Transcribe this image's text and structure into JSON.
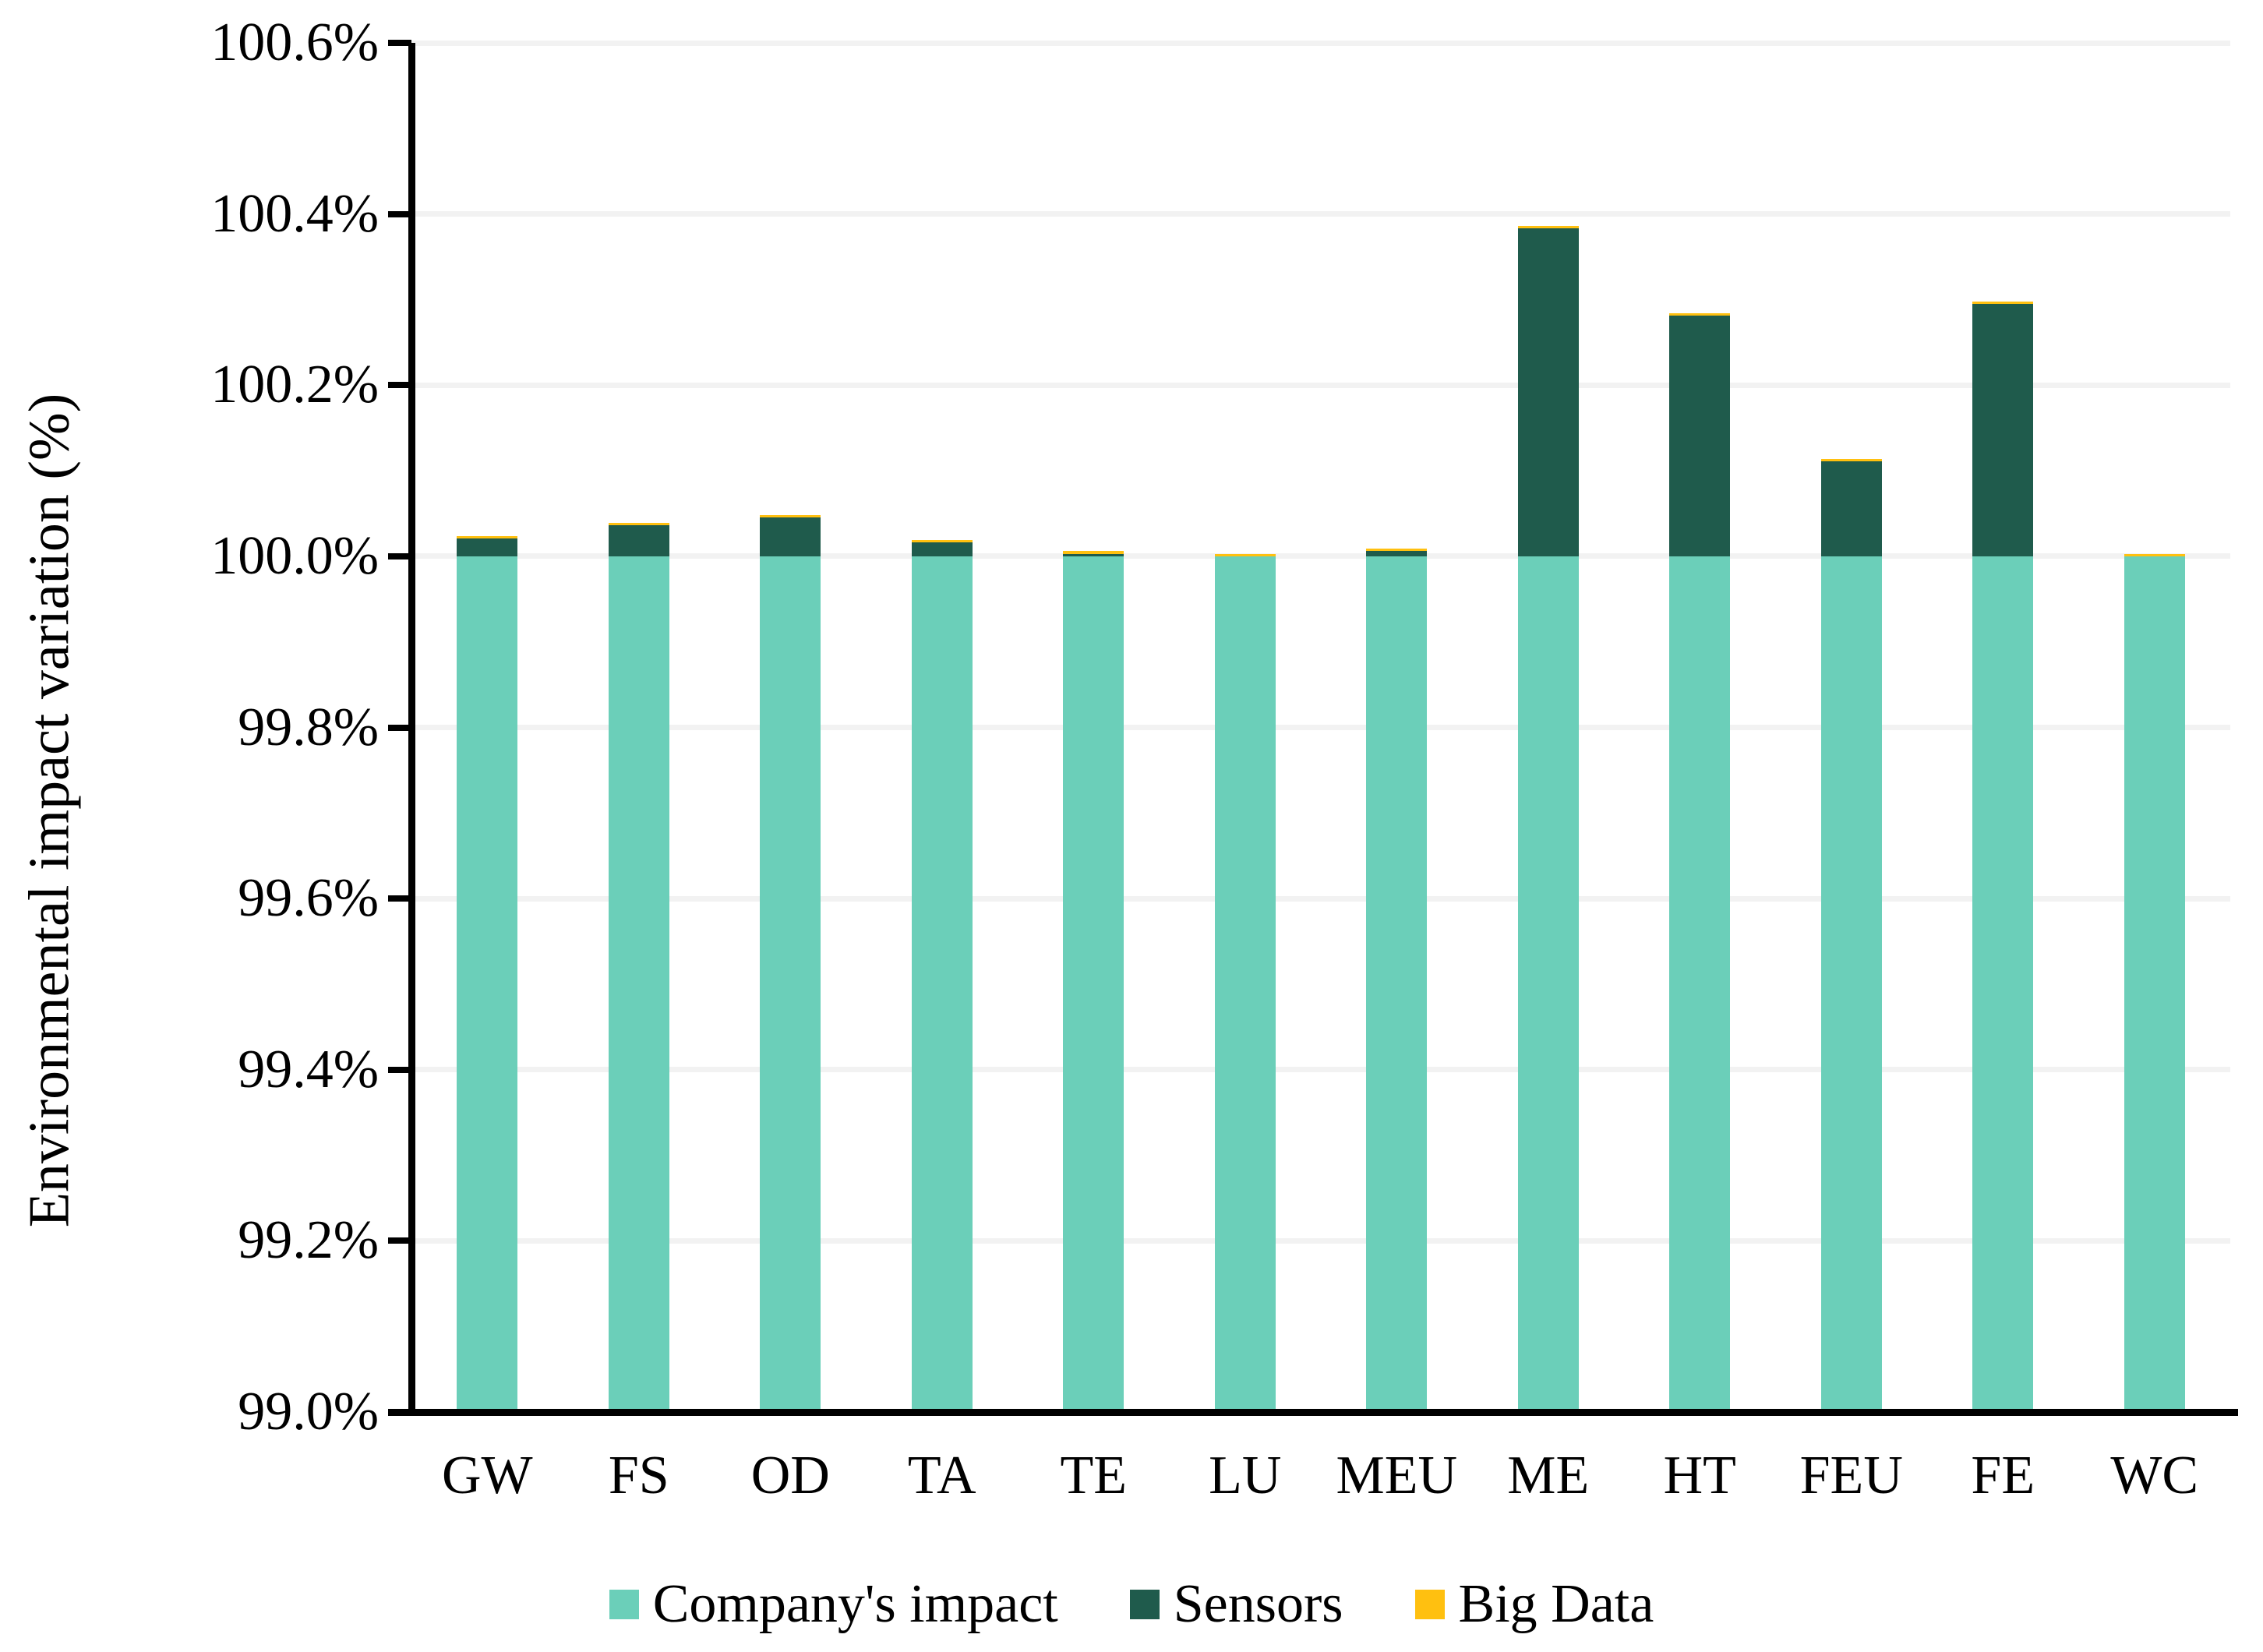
{
  "chart_data": {
    "type": "bar",
    "stacked": true,
    "title": "",
    "xlabel": "",
    "ylabel": "Environmental impact variation (%)",
    "categories": [
      "GW",
      "FS",
      "OD",
      "TA",
      "TE",
      "LU",
      "MEU",
      "ME",
      "HT",
      "FEU",
      "FE",
      "WC"
    ],
    "series": [
      {
        "name": "Company's impact",
        "color": "#6BCFB9",
        "note": "baseline stack segment, value is absolute percent reached from axis minimum",
        "values": [
          100.0,
          100.0,
          100.0,
          100.0,
          100.0,
          100.0,
          100.0,
          100.0,
          100.0,
          100.0,
          100.0,
          100.0
        ]
      },
      {
        "name": "Sensors",
        "color": "#1F5B4C",
        "note": "increment stacked above Company's impact, percent points",
        "values": [
          0.021,
          0.036,
          0.045,
          0.016,
          0.003,
          0.0,
          0.006,
          0.383,
          0.281,
          0.111,
          0.295,
          0.0
        ]
      },
      {
        "name": "Big Data",
        "color": "#FFC010",
        "note": "thin cap increment, percent points",
        "values": [
          0.003,
          0.003,
          0.003,
          0.003,
          0.003,
          0.003,
          0.003,
          0.003,
          0.003,
          0.003,
          0.003,
          0.003
        ]
      }
    ],
    "stack_totals": [
      100.024,
      100.039,
      100.048,
      100.019,
      100.006,
      100.003,
      100.009,
      100.386,
      100.284,
      100.114,
      100.298,
      100.003
    ],
    "ylim": [
      99.0,
      100.6
    ],
    "yticks": [
      {
        "v": 99.0,
        "label": "99.0%"
      },
      {
        "v": 99.2,
        "label": "99.2%"
      },
      {
        "v": 99.4,
        "label": "99.4%"
      },
      {
        "v": 99.6,
        "label": "99.6%"
      },
      {
        "v": 99.8,
        "label": "99.8%"
      },
      {
        "v": 100.0,
        "label": "100.0%"
      },
      {
        "v": 100.2,
        "label": "100.2%"
      },
      {
        "v": 100.4,
        "label": "100.4%"
      },
      {
        "v": 100.6,
        "label": "100.6%"
      }
    ],
    "grid": true,
    "grid_color": "#F2F2F2",
    "axis_color": "#000000",
    "legend_position": "bottom"
  }
}
